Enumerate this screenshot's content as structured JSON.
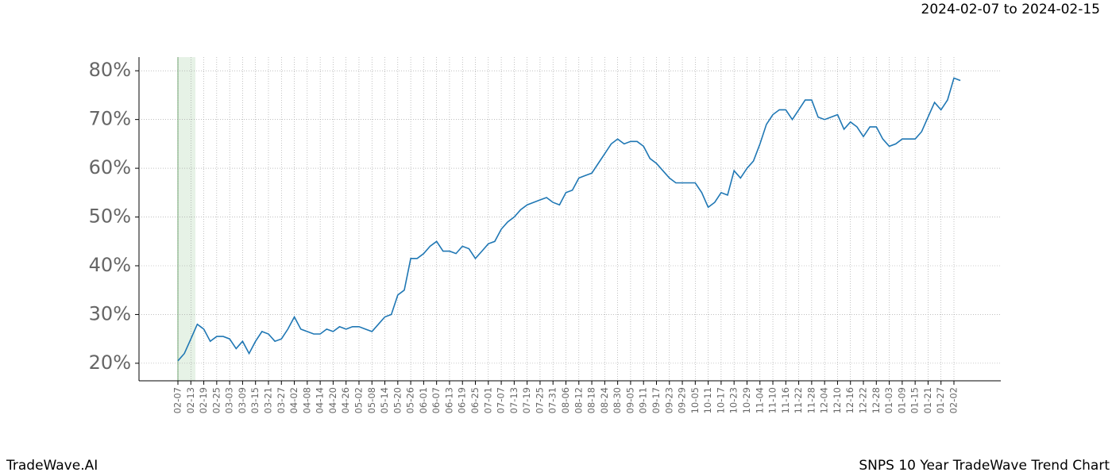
{
  "chart_data": {
    "type": "line",
    "title": "SNPS 10 Year TradeWave Trend Chart",
    "subtitle": "2024-02-07 to 2024-02-15",
    "brand": "TradeWave.AI",
    "categories": [
      "02-07",
      null,
      "02-13",
      null,
      "02-19",
      null,
      "02-25",
      null,
      "03-03",
      null,
      "03-09",
      null,
      "03-15",
      null,
      "03-21",
      null,
      "03-27",
      null,
      "04-02",
      null,
      "04-08",
      null,
      "04-14",
      null,
      "04-20",
      null,
      "04-26",
      null,
      "05-02",
      null,
      "05-08",
      null,
      "05-14",
      null,
      "05-20",
      null,
      "05-26",
      null,
      "06-01",
      null,
      "06-07",
      null,
      "06-13",
      null,
      "06-19",
      null,
      "06-25",
      null,
      "07-01",
      null,
      "07-07",
      null,
      "07-13",
      null,
      "07-19",
      null,
      "07-25",
      null,
      "07-31",
      null,
      "08-06",
      null,
      "08-12",
      null,
      "08-18",
      null,
      "08-24",
      null,
      "08-30",
      null,
      "09-05",
      null,
      "09-11",
      null,
      "09-17",
      null,
      "09-23",
      null,
      "09-29",
      null,
      "10-05",
      null,
      "10-11",
      null,
      "10-17",
      null,
      "10-23",
      null,
      "10-29",
      null,
      "11-04",
      null,
      "11-10",
      null,
      "11-16",
      null,
      "11-22",
      null,
      "11-28",
      null,
      "12-04",
      null,
      "12-10",
      null,
      "12-16",
      null,
      "12-22",
      null,
      "12-28",
      null,
      "01-03",
      null,
      "01-09",
      null,
      "01-15",
      null,
      "01-21",
      null,
      "01-27",
      null,
      "02-02",
      null
    ],
    "series": [
      {
        "name": "SNPS",
        "color": "#1f77b4",
        "values": [
          20.5,
          22,
          25,
          28,
          27,
          24.5,
          25.5,
          25.5,
          25,
          23,
          24.5,
          22,
          24.5,
          26.5,
          26,
          24.5,
          25,
          27,
          29.5,
          27,
          26.5,
          26,
          26,
          27,
          26.5,
          27.5,
          27,
          27.5,
          27.5,
          27,
          26.5,
          28,
          29.5,
          30,
          34,
          35,
          41.5,
          41.5,
          42.5,
          44,
          45,
          43,
          43,
          42.5,
          44,
          43.5,
          41.5,
          43,
          44.5,
          45,
          47.5,
          49,
          50,
          51.5,
          52.5,
          53,
          53.5,
          54,
          53,
          52.5,
          55,
          55.5,
          58,
          58.5,
          59,
          61,
          63,
          65,
          66,
          65,
          65.5,
          65.5,
          64.5,
          62,
          61,
          59.5,
          58,
          57,
          57,
          57,
          57,
          55,
          52,
          53,
          55,
          54.5,
          59.5,
          58,
          60,
          61.5,
          65,
          69,
          71,
          72,
          72,
          70,
          72,
          74,
          74,
          70.5,
          70,
          70.5,
          71,
          68,
          69.5,
          68.5,
          66.5,
          68.5,
          68.5,
          66,
          64.5,
          65,
          66,
          66,
          66,
          67.5,
          70.5,
          73.5,
          72,
          74,
          78.5,
          78
        ]
      }
    ],
    "ylim": [
      16.4,
      82.8
    ],
    "yticks": [
      {
        "value": 20,
        "label": "20%"
      },
      {
        "value": 30,
        "label": "30%"
      },
      {
        "value": 40,
        "label": "40%"
      },
      {
        "value": 50,
        "label": "50%"
      },
      {
        "value": 60,
        "label": "60%"
      },
      {
        "value": 70,
        "label": "70%"
      },
      {
        "value": 80,
        "label": "80%"
      }
    ],
    "grid": true
  }
}
